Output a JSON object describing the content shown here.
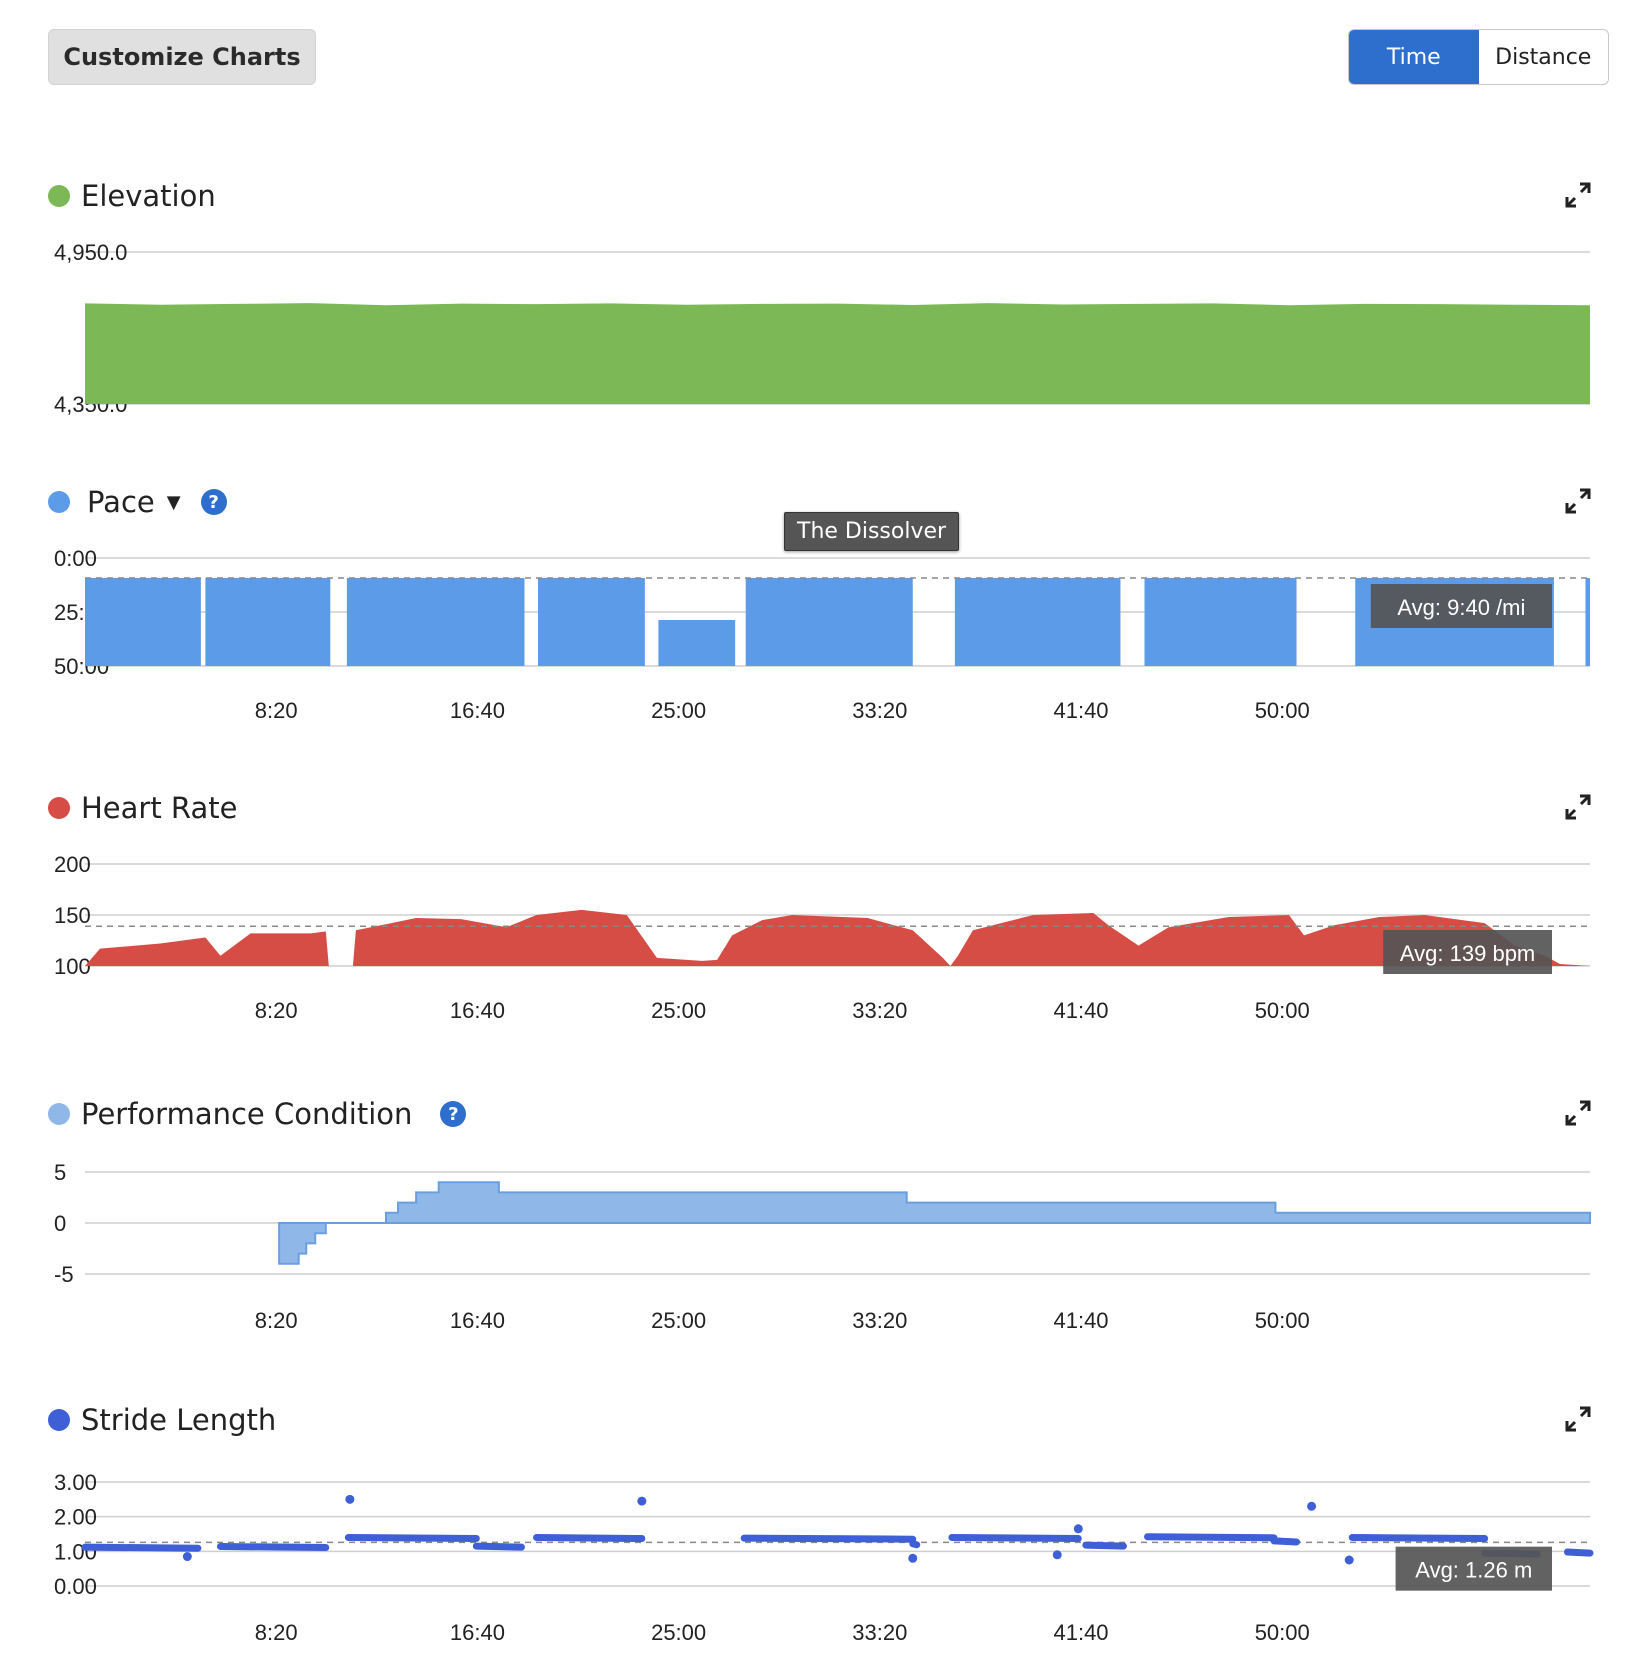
{
  "toolbar": {
    "customize_label": "Customize Charts",
    "time_label": "Time",
    "distance_label": "Distance",
    "active": "Time"
  },
  "tooltip": {
    "text": "The Dissolver"
  },
  "x_ticks": [
    "8:20",
    "16:40",
    "25:00",
    "33:20",
    "41:40",
    "50:00"
  ],
  "chart_data": [
    {
      "type": "area",
      "title": "Elevation",
      "color": "#7cb855",
      "y_ticks": [
        "4,950.0",
        "4,350.0"
      ],
      "ylim": [
        4350,
        4950
      ],
      "x": [
        0,
        0.05,
        0.1,
        0.15,
        0.2,
        0.25,
        0.3,
        0.35,
        0.4,
        0.45,
        0.5,
        0.55,
        0.6,
        0.65,
        0.7,
        0.75,
        0.8,
        0.85,
        0.9,
        0.95,
        1.0
      ],
      "values": [
        4747,
        4742,
        4745,
        4748,
        4740,
        4746,
        4744,
        4747,
        4742,
        4745,
        4746,
        4741,
        4748,
        4743,
        4745,
        4747,
        4740,
        4745,
        4744,
        4742,
        4740
      ]
    },
    {
      "type": "area",
      "title": "Pace",
      "color": "#5b9be8",
      "has_dropdown": true,
      "has_help": true,
      "y_ticks": [
        "0:00",
        "25:00",
        "50:00"
      ],
      "inverted": true,
      "avg_label": "Avg: 9:40 /mi",
      "segments": [
        [
          0.0,
          0.077
        ],
        [
          0.08,
          0.163
        ],
        [
          0.174,
          0.292
        ],
        [
          0.301,
          0.372
        ],
        [
          0.381,
          0.432
        ],
        [
          0.439,
          0.55
        ],
        [
          0.578,
          0.688
        ],
        [
          0.704,
          0.805
        ],
        [
          0.844,
          0.976
        ],
        [
          0.997,
          1.0
        ]
      ]
    },
    {
      "type": "area",
      "title": "Heart Rate",
      "color": "#d64d45",
      "y_ticks": [
        "200",
        "150",
        "100"
      ],
      "ylim": [
        100,
        200
      ],
      "avg_label": "Avg: 139 bpm",
      "avg": 139,
      "x": [
        0,
        0.01,
        0.05,
        0.08,
        0.09,
        0.11,
        0.15,
        0.16,
        0.162,
        0.178,
        0.18,
        0.22,
        0.25,
        0.28,
        0.3,
        0.33,
        0.36,
        0.38,
        0.41,
        0.42,
        0.43,
        0.45,
        0.47,
        0.52,
        0.55,
        0.57,
        0.575,
        0.58,
        0.59,
        0.63,
        0.67,
        0.68,
        0.7,
        0.72,
        0.76,
        0.8,
        0.81,
        0.83,
        0.86,
        0.89,
        0.93,
        0.95,
        0.97,
        0.98,
        1.0
      ],
      "values": [
        100,
        117,
        122,
        128,
        110,
        132,
        132,
        134,
        100,
        100,
        135,
        147,
        146,
        138,
        150,
        155,
        150,
        108,
        105,
        106,
        130,
        145,
        150,
        147,
        135,
        108,
        100,
        110,
        135,
        150,
        152,
        140,
        120,
        138,
        148,
        150,
        130,
        140,
        148,
        150,
        142,
        120,
        110,
        102,
        100
      ]
    },
    {
      "type": "area",
      "title": "Performance Condition",
      "color": "#8fb8e8",
      "has_help": true,
      "y_ticks": [
        "5",
        "0",
        "-5"
      ],
      "ylim": [
        -5,
        5
      ],
      "step": true,
      "x": [
        0.129,
        0.142,
        0.147,
        0.153,
        0.16,
        0.2,
        0.208,
        0.22,
        0.235,
        0.275,
        0.546,
        0.791,
        1.0
      ],
      "values": [
        -4,
        -3,
        -2,
        -1,
        0,
        1,
        2,
        3,
        4,
        3,
        2,
        1,
        1
      ]
    },
    {
      "type": "scatter",
      "title": "Stride Length",
      "color": "#3f5fd6",
      "y_ticks": [
        "3.00",
        "2.00",
        "1.00",
        "0.00"
      ],
      "ylim": [
        0,
        3
      ],
      "avg_label": "Avg: 1.26 m",
      "avg": 1.26,
      "segments": [
        [
          0.0,
          0.075,
          1.12
        ],
        [
          0.09,
          0.16,
          1.14
        ],
        [
          0.175,
          0.26,
          1.4
        ],
        [
          0.26,
          0.29,
          1.15
        ],
        [
          0.3,
          0.37,
          1.4
        ],
        [
          0.438,
          0.55,
          1.38
        ],
        [
          0.55,
          0.55,
          1.22
        ],
        [
          0.576,
          0.66,
          1.4
        ],
        [
          0.665,
          0.69,
          1.18
        ],
        [
          0.706,
          0.79,
          1.42
        ],
        [
          0.79,
          0.805,
          1.3
        ],
        [
          0.842,
          0.93,
          1.4
        ],
        [
          0.93,
          0.965,
          0.95
        ],
        [
          0.985,
          1.0,
          0.98
        ]
      ],
      "outliers": [
        [
          0.176,
          2.5
        ],
        [
          0.37,
          2.45
        ],
        [
          0.815,
          2.3
        ],
        [
          0.55,
          0.8
        ],
        [
          0.068,
          0.85
        ],
        [
          0.66,
          1.65
        ],
        [
          0.84,
          0.75
        ],
        [
          0.646,
          0.9
        ]
      ]
    }
  ]
}
